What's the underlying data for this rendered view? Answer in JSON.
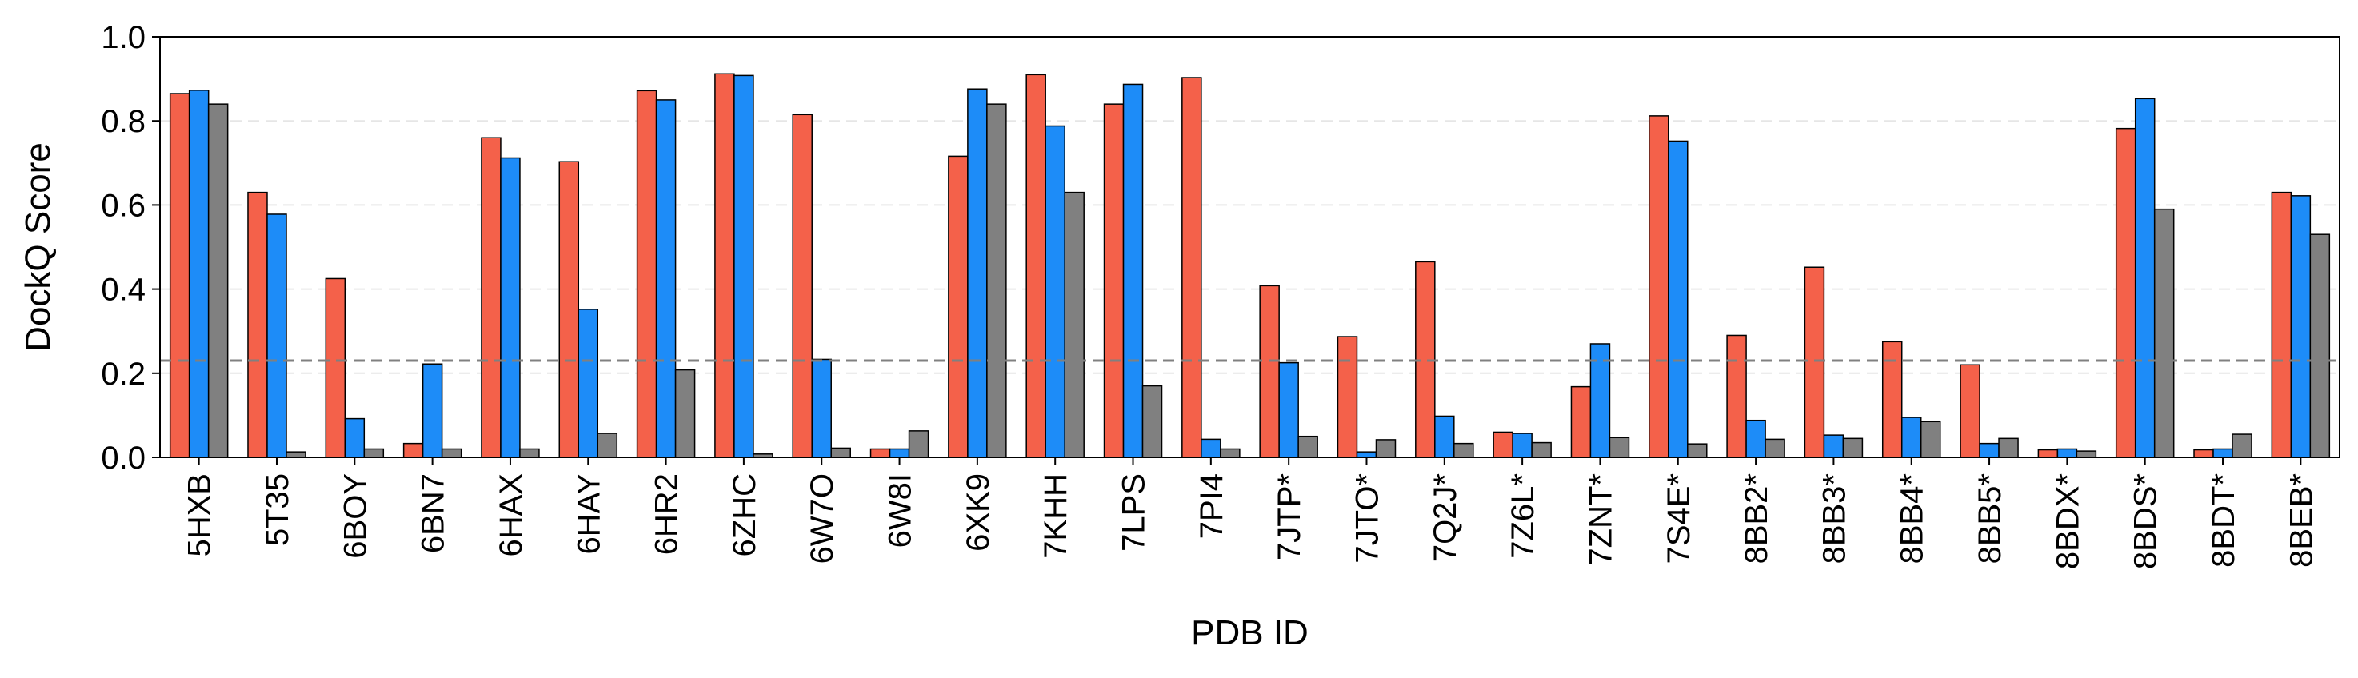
{
  "chart_data": {
    "type": "bar",
    "xlabel": "PDB ID",
    "ylabel": "DockQ Score",
    "ylim": [
      0,
      1.0
    ],
    "yticks": [
      "0.0",
      "0.2",
      "0.4",
      "0.6",
      "0.8",
      "1.0"
    ],
    "grid": "horizontal dashed",
    "reference_line": 0.23,
    "categories": [
      "5HXB",
      "5T35",
      "6BOY",
      "6BN7",
      "6HAX",
      "6HAY",
      "6HR2",
      "6ZHC",
      "6W7O",
      "6W8I",
      "6XK9",
      "7KHH",
      "7LPS",
      "7PI4",
      "7JTP*",
      "7JTO*",
      "7Q2J*",
      "7Z6L*",
      "7ZNT*",
      "7S4E*",
      "8BB2*",
      "8BB3*",
      "8BB4*",
      "8BB5*",
      "8BDX*",
      "8BDS*",
      "8BDT*",
      "8BEB*"
    ],
    "series": [
      {
        "color": "#f4614a",
        "values": [
          0.865,
          0.63,
          0.425,
          0.033,
          0.76,
          0.703,
          0.872,
          0.912,
          0.815,
          0.02,
          0.716,
          0.91,
          0.84,
          0.903,
          0.408,
          0.287,
          0.465,
          0.06,
          0.168,
          0.812,
          0.29,
          0.452,
          0.275,
          0.22,
          0.018,
          0.782,
          0.018,
          0.63
        ]
      },
      {
        "color": "#1d8cf8",
        "values": [
          0.873,
          0.578,
          0.092,
          0.222,
          0.712,
          0.352,
          0.85,
          0.908,
          0.233,
          0.02,
          0.876,
          0.788,
          0.887,
          0.043,
          0.225,
          0.013,
          0.098,
          0.057,
          0.27,
          0.752,
          0.088,
          0.053,
          0.095,
          0.033,
          0.02,
          0.853,
          0.02,
          0.622
        ]
      },
      {
        "color": "#808080",
        "values": [
          0.84,
          0.013,
          0.02,
          0.02,
          0.02,
          0.057,
          0.208,
          0.008,
          0.022,
          0.063,
          0.84,
          0.63,
          0.17,
          0.02,
          0.05,
          0.042,
          0.033,
          0.035,
          0.047,
          0.032,
          0.043,
          0.045,
          0.085,
          0.045,
          0.015,
          0.59,
          0.055,
          0.53
        ]
      }
    ]
  }
}
